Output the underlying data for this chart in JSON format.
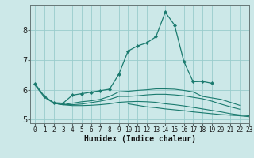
{
  "title": "",
  "xlabel": "Humidex (Indice chaleur)",
  "ylabel": "",
  "xlim": [
    -0.5,
    23
  ],
  "ylim": [
    4.88,
    8.85
  ],
  "background_color": "#cce8e8",
  "grid_color": "#99cccc",
  "line_color": "#1a7a6e",
  "xticks": [
    0,
    1,
    2,
    3,
    4,
    5,
    6,
    7,
    8,
    9,
    10,
    11,
    12,
    13,
    14,
    15,
    16,
    17,
    18,
    19,
    20,
    21,
    22,
    23
  ],
  "yticks": [
    5,
    6,
    7,
    8
  ],
  "lines": [
    {
      "x": [
        0,
        1,
        2,
        3,
        4,
        5,
        6,
        7,
        8,
        9,
        10,
        11,
        12,
        13,
        14,
        15,
        16,
        17,
        18,
        19
      ],
      "y": [
        6.2,
        5.78,
        5.57,
        5.55,
        5.82,
        5.87,
        5.92,
        5.97,
        6.02,
        6.52,
        7.3,
        7.47,
        7.57,
        7.78,
        8.6,
        8.17,
        6.95,
        6.27,
        6.28,
        6.22
      ],
      "marker": true
    },
    {
      "x": [
        0,
        1,
        2,
        3,
        4,
        5,
        6,
        7,
        8,
        9,
        10,
        11,
        12,
        13,
        14,
        15,
        16,
        17,
        18,
        19,
        20,
        21,
        22
      ],
      "y": [
        6.15,
        5.75,
        5.55,
        5.5,
        5.55,
        5.6,
        5.63,
        5.68,
        5.78,
        5.93,
        5.95,
        5.98,
        6.0,
        6.03,
        6.03,
        6.02,
        5.98,
        5.93,
        5.78,
        5.73,
        5.68,
        5.58,
        5.48
      ],
      "marker": false
    },
    {
      "x": [
        2,
        3,
        4,
        5,
        6,
        7,
        8,
        9,
        10,
        11,
        12,
        13,
        14,
        15,
        16,
        17,
        18,
        19,
        20,
        21,
        22
      ],
      "y": [
        5.55,
        5.5,
        5.5,
        5.52,
        5.57,
        5.62,
        5.68,
        5.78,
        5.78,
        5.8,
        5.83,
        5.85,
        5.85,
        5.83,
        5.8,
        5.75,
        5.7,
        5.62,
        5.52,
        5.43,
        5.35
      ],
      "marker": false
    },
    {
      "x": [
        2,
        3,
        4,
        5,
        6,
        7,
        8,
        9,
        10,
        11,
        12,
        13,
        14,
        15,
        16,
        17,
        18,
        19,
        20,
        21,
        22,
        23
      ],
      "y": [
        5.55,
        5.5,
        5.47,
        5.47,
        5.48,
        5.5,
        5.53,
        5.58,
        5.6,
        5.61,
        5.6,
        5.58,
        5.53,
        5.5,
        5.46,
        5.41,
        5.36,
        5.31,
        5.26,
        5.2,
        5.16,
        5.13
      ],
      "marker": false
    },
    {
      "x": [
        10,
        11,
        12,
        13,
        14,
        15,
        16,
        17,
        18,
        19,
        20,
        21,
        22,
        23
      ],
      "y": [
        5.53,
        5.48,
        5.43,
        5.4,
        5.36,
        5.33,
        5.3,
        5.26,
        5.23,
        5.2,
        5.17,
        5.15,
        5.13,
        5.1
      ],
      "marker": false
    }
  ]
}
